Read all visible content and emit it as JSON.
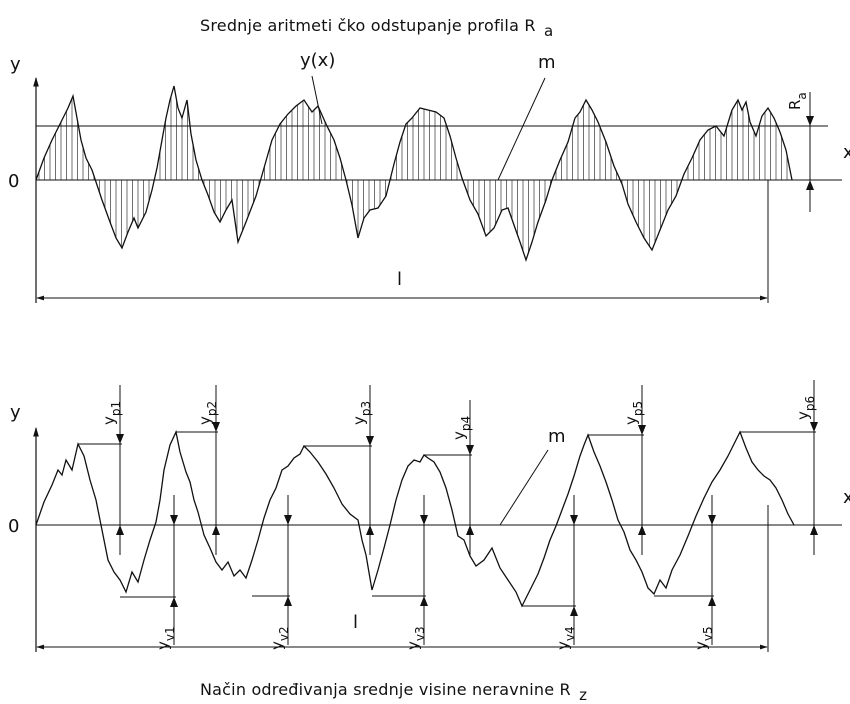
{
  "top_figure": {
    "title_main": "Srednje aritmeti čko odstupanje profila R",
    "title_sub": "a",
    "y_axis_label": "y",
    "zero_label": "0",
    "x_axis_label": "x",
    "curve_label": "y(x)",
    "mean_line_label": "m",
    "ra_label_main": "R",
    "ra_label_sub": "a",
    "length_label": "l"
  },
  "bottom_figure": {
    "title_main": "Način određivanja srednje visine neravnine R",
    "title_sub": "z",
    "y_axis_label": "y",
    "zero_label": "0",
    "x_axis_label": "x",
    "mean_line_label": "m",
    "length_label": "l",
    "peaks": [
      {
        "main": "y",
        "sub": "p1"
      },
      {
        "main": "y",
        "sub": "p2"
      },
      {
        "main": "y",
        "sub": "p3"
      },
      {
        "main": "y",
        "sub": "p4"
      },
      {
        "main": "y",
        "sub": "p5"
      },
      {
        "main": "y",
        "sub": "p6"
      }
    ],
    "valleys": [
      {
        "main": "y",
        "sub": "v1"
      },
      {
        "main": "y",
        "sub": "v2"
      },
      {
        "main": "y",
        "sub": "v3"
      },
      {
        "main": "y",
        "sub": "v4"
      },
      {
        "main": "y",
        "sub": "v5"
      }
    ]
  },
  "colors": {
    "line": "#111111",
    "background": "#ffffff"
  }
}
